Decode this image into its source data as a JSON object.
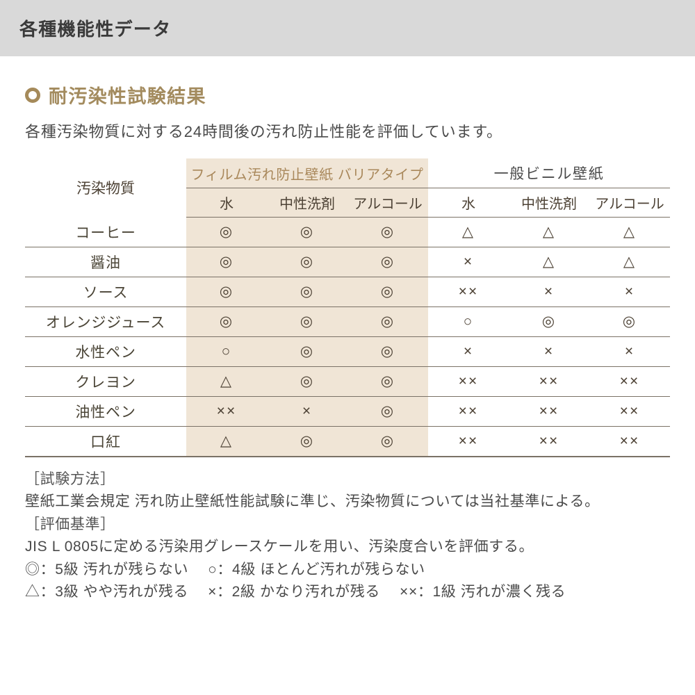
{
  "header": {
    "title": "各種機能性データ"
  },
  "section": {
    "title": "耐汚染性試験結果",
    "lead": "各種汚染物質に対する24時間後の汚れ防止性能を評価しています。",
    "bullet_color": "#a58a5a",
    "title_color": "#a38b5e"
  },
  "table": {
    "row_header": "汚染物質",
    "groups": [
      {
        "label": "フィルム汚れ防止壁紙 バリアタイプ",
        "bg": "#f0e5d6",
        "text_color": "#a9885b"
      },
      {
        "label": "一般ビニル壁紙",
        "bg": "#ffffff",
        "text_color": "#4a4a4a"
      }
    ],
    "subcols": [
      "水",
      "中性洗剤",
      "アルコール"
    ],
    "rows": [
      {
        "label": "コーヒー",
        "cells": [
          "◎",
          "◎",
          "◎",
          "△",
          "△",
          "△"
        ]
      },
      {
        "label": "醤油",
        "cells": [
          "◎",
          "◎",
          "◎",
          "×",
          "△",
          "△"
        ]
      },
      {
        "label": "ソース",
        "cells": [
          "◎",
          "◎",
          "◎",
          "××",
          "×",
          "×"
        ]
      },
      {
        "label": "オレンジジュース",
        "cells": [
          "◎",
          "◎",
          "◎",
          "○",
          "◎",
          "◎"
        ]
      },
      {
        "label": "水性ペン",
        "cells": [
          "○",
          "◎",
          "◎",
          "×",
          "×",
          "×"
        ]
      },
      {
        "label": "クレヨン",
        "cells": [
          "△",
          "◎",
          "◎",
          "××",
          "××",
          "××"
        ]
      },
      {
        "label": "油性ペン",
        "cells": [
          "××",
          "×",
          "◎",
          "××",
          "××",
          "××"
        ]
      },
      {
        "label": "口紅",
        "cells": [
          "△",
          "◎",
          "◎",
          "××",
          "××",
          "××"
        ]
      }
    ],
    "border_color": "#7a7166"
  },
  "notes": {
    "method_label": "［試験方法］",
    "method_text": "壁紙工業会規定 汚れ防止壁紙性能試験に準じ、汚染物質については当社基準による。",
    "criteria_label": "［評価基準］",
    "criteria_text": "JIS L 0805に定める汚染用グレースケールを用い、汚染度合いを評価する。",
    "legend": [
      "◎：5級 汚れが残らない",
      "○：4級 ほとんど汚れが残らない",
      "△：3級 やや汚れが残る",
      "×：2級 かなり汚れが残る",
      "××：1級 汚れが濃く残る"
    ]
  },
  "colors": {
    "header_bg": "#d9d9d9",
    "page_bg": "#ffffff",
    "text": "#4a4a4a"
  }
}
